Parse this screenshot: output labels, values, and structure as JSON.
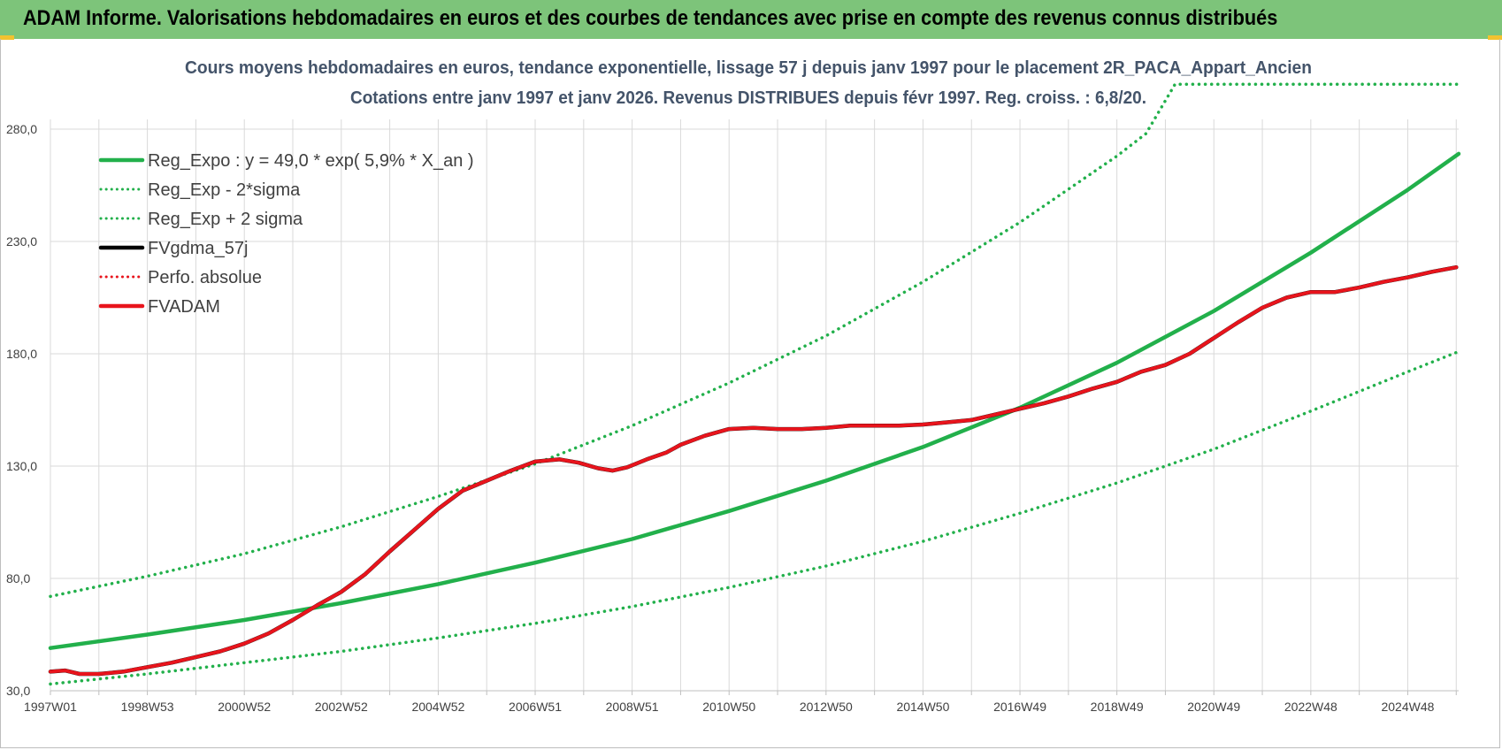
{
  "header": {
    "title": "ADAM Informe. Valorisations hebdomadaires en euros et des courbes de tendances avec prise en compte des revenus connus distribués"
  },
  "colors": {
    "header_bg": "#7dc47a",
    "reg_expo": "#22b04b",
    "fvadam": "#e8141c",
    "fvgdma": "#000000",
    "grid": "#d9d9d9"
  },
  "chart_data": {
    "type": "line",
    "title_line1": "Cours moyens hebdomadaires en euros, tendance exponentielle, lissage 57 j depuis janv 1997 pour le placement 2R_PACA_Appart_Ancien",
    "title_line2": "Cotations entre janv 1997 et janv 2026. Revenus DISTRIBUES depuis févr 1997. Reg. croiss. : 6,8/20.",
    "xlabel": "",
    "ylabel": "",
    "ylim": [
      30,
      280
    ],
    "xlim": [
      1997.0,
      2026.05
    ],
    "y_ticks": [
      "280,0",
      "230,0",
      "180,0",
      "130,0",
      "80,0",
      "30,0"
    ],
    "y_tick_values": [
      280,
      230,
      180,
      130,
      80,
      30
    ],
    "x_ticks": [
      "1997W01",
      "1998W53",
      "2000W52",
      "2002W52",
      "2004W52",
      "2006W51",
      "2008W51",
      "2010W50",
      "2012W50",
      "2014W50",
      "2016W49",
      "2018W49",
      "2020W49",
      "2022W48",
      "2024W48"
    ],
    "x_tick_values": [
      1997.0,
      1999.0,
      2001.0,
      2003.0,
      2005.0,
      2007.0,
      2009.0,
      2011.0,
      2013.0,
      2015.0,
      2017.0,
      2019.0,
      2021.0,
      2023.0,
      2025.0
    ],
    "grid": true,
    "legend_position": "top-left",
    "legend": [
      {
        "label": "Reg_Expo : y = 49,0 * exp( 5,9% *  X_an )",
        "color": "#22b04b",
        "style": "solid"
      },
      {
        "label": "Reg_Exp - 2*sigma",
        "color": "#22b04b",
        "style": "dotted"
      },
      {
        "label": "Reg_Exp + 2 sigma",
        "color": "#22b04b",
        "style": "dotted"
      },
      {
        "label": "FVgdma_57j",
        "color": "#000000",
        "style": "solid"
      },
      {
        "label": "Perfo. absolue",
        "color": "#e8141c",
        "style": "dotted"
      },
      {
        "label": "FVADAM",
        "color": "#e8141c",
        "style": "solid"
      }
    ],
    "series": [
      {
        "name": "Reg_Expo : y = 49,0 * exp( 5,9% *  X_an )",
        "color": "#22b04b",
        "style": "solid",
        "x": [
          1997.0,
          1999.0,
          2001.0,
          2003.0,
          2005.0,
          2007.0,
          2009.0,
          2011.0,
          2013.0,
          2015.0,
          2017.0,
          2019.0,
          2021.0,
          2023.0,
          2025.0,
          2026.05
        ],
        "y": [
          49,
          55,
          61.5,
          69,
          77.5,
          87,
          97.5,
          110,
          123.5,
          138.5,
          156,
          176,
          199,
          225,
          253,
          269
        ]
      },
      {
        "name": "Reg_Exp - 2*sigma",
        "color": "#22b04b",
        "style": "dotted",
        "x": [
          1997.0,
          1999.0,
          2001.0,
          2003.0,
          2005.0,
          2007.0,
          2009.0,
          2011.0,
          2013.0,
          2015.0,
          2017.0,
          2019.0,
          2021.0,
          2023.0,
          2025.0,
          2026.05
        ],
        "y": [
          33,
          37.5,
          42.5,
          47.5,
          53.5,
          60,
          67.5,
          76,
          85.5,
          96.5,
          109,
          122.5,
          137.5,
          154.5,
          172,
          181
        ]
      },
      {
        "name": "Reg_Exp + 2 sigma",
        "color": "#22b04b",
        "style": "dotted",
        "x": [
          1997.0,
          1999.0,
          2001.0,
          2003.0,
          2005.0,
          2007.0,
          2009.0,
          2011.0,
          2013.0,
          2015.0,
          2017.0,
          2019.0,
          2019.6,
          2020.2,
          2021.0,
          2023.0,
          2025.0,
          2026.05
        ],
        "y": [
          72,
          81,
          91,
          103,
          116.5,
          131,
          148,
          167,
          188,
          212,
          238.5,
          268,
          278,
          300,
          300,
          300,
          300,
          300
        ]
      },
      {
        "name": "FVgdma_57j",
        "color": "#000000",
        "style": "solid",
        "x": [
          1997.0,
          1997.3,
          1997.6,
          1998.0,
          1998.5,
          1999.0,
          1999.5,
          2000.0,
          2000.5,
          2001.0,
          2001.5,
          2002.0,
          2002.5,
          2003.0,
          2003.5,
          2004.0,
          2004.5,
          2005.0,
          2005.5,
          2006.0,
          2006.5,
          2007.0,
          2007.5,
          2007.9,
          2008.3,
          2008.6,
          2008.9,
          2009.3,
          2009.7,
          2010.0,
          2010.5,
          2011.0,
          2011.5,
          2012.0,
          2012.5,
          2013.0,
          2013.5,
          2014.0,
          2014.5,
          2015.0,
          2015.5,
          2016.0,
          2016.5,
          2017.0,
          2017.5,
          2018.0,
          2018.5,
          2019.0,
          2019.5,
          2020.0,
          2020.5,
          2021.0,
          2021.5,
          2022.0,
          2022.5,
          2023.0,
          2023.5,
          2024.0,
          2024.5,
          2025.0,
          2025.5,
          2026.0
        ],
        "y": [
          38.5,
          39,
          37.5,
          37.5,
          38.5,
          40.5,
          42.5,
          45,
          47.5,
          51,
          55.5,
          61.5,
          68,
          74,
          82,
          92,
          101.5,
          111,
          119,
          123.5,
          128,
          132,
          133,
          131.5,
          129,
          128,
          129.5,
          133,
          136,
          139.5,
          143.5,
          146.5,
          147,
          146.5,
          146.5,
          147,
          148,
          148,
          148,
          148.5,
          149.5,
          150.5,
          153,
          155.5,
          158,
          161,
          164.5,
          167.5,
          172,
          175,
          180,
          187,
          194,
          200.5,
          205,
          207.5,
          207.5,
          209.5,
          212,
          214,
          216.5,
          218.5
        ]
      },
      {
        "name": "FVADAM",
        "color": "#e8141c",
        "style": "solid",
        "x": [
          1997.0,
          1997.3,
          1997.6,
          1998.0,
          1998.5,
          1999.0,
          1999.5,
          2000.0,
          2000.5,
          2001.0,
          2001.5,
          2002.0,
          2002.5,
          2003.0,
          2003.5,
          2004.0,
          2004.5,
          2005.0,
          2005.5,
          2006.0,
          2006.5,
          2007.0,
          2007.5,
          2007.9,
          2008.3,
          2008.6,
          2008.9,
          2009.3,
          2009.7,
          2010.0,
          2010.5,
          2011.0,
          2011.5,
          2012.0,
          2012.5,
          2013.0,
          2013.5,
          2014.0,
          2014.5,
          2015.0,
          2015.5,
          2016.0,
          2016.5,
          2017.0,
          2017.5,
          2018.0,
          2018.5,
          2019.0,
          2019.5,
          2020.0,
          2020.5,
          2021.0,
          2021.5,
          2022.0,
          2022.5,
          2023.0,
          2023.5,
          2024.0,
          2024.5,
          2025.0,
          2025.5,
          2026.0
        ],
        "y": [
          38.5,
          39,
          37.5,
          37.5,
          38.5,
          40.5,
          42.5,
          45,
          47.5,
          51,
          55.5,
          61.5,
          68,
          74,
          82,
          92,
          101.5,
          111,
          119,
          123.5,
          128,
          132,
          133,
          131.5,
          129,
          128,
          129.5,
          133,
          136,
          139.5,
          143.5,
          146.5,
          147,
          146.5,
          146.5,
          147,
          148,
          148,
          148,
          148.5,
          149.5,
          150.5,
          153,
          155.5,
          158,
          161,
          164.5,
          167.5,
          172,
          175,
          180,
          187,
          194,
          200.5,
          205,
          207.5,
          207.5,
          209.5,
          212,
          214,
          216.5,
          218.5
        ]
      }
    ]
  }
}
